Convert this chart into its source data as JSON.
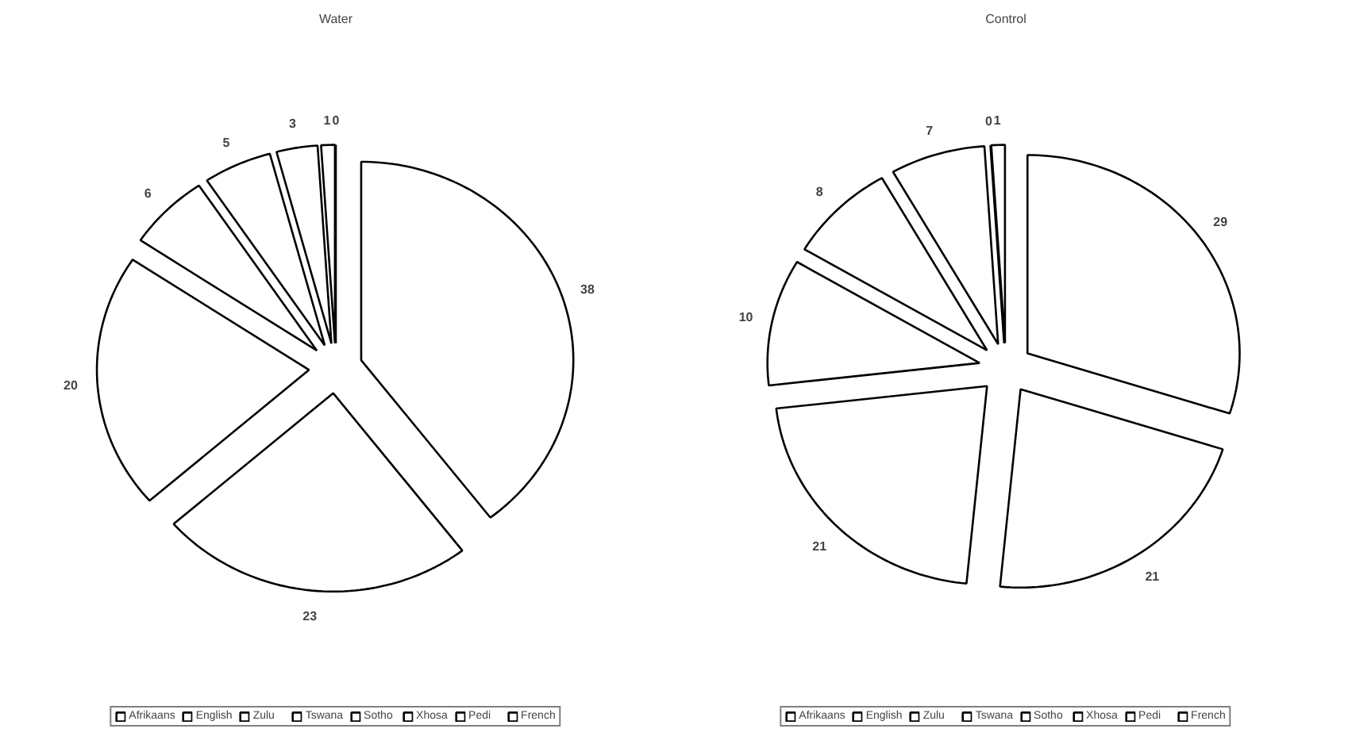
{
  "chart_data": [
    {
      "type": "pie",
      "title": "Water",
      "categories": [
        "Afrikaans",
        "English",
        "Zulu",
        "Tswana",
        "Sotho",
        "Xhosa",
        "Pedi",
        "French"
      ],
      "values": [
        38,
        23,
        20,
        6,
        5,
        3,
        1,
        0
      ],
      "value_labels": [
        "38",
        "23",
        "20",
        "6",
        "5",
        "3",
        "1",
        "0"
      ],
      "colors": [
        "#ffffff",
        "#ffffff",
        "#ffffff",
        "#ffffff",
        "#ffffff",
        "#ffffff",
        "#ffffff",
        "#ffffff"
      ],
      "legend": "bottom"
    },
    {
      "type": "pie",
      "title": "Control",
      "categories": [
        "Afrikaans",
        "English",
        "Zulu",
        "Tswana",
        "Sotho",
        "Xhosa",
        "Pedi",
        "French"
      ],
      "values": [
        29,
        21,
        21,
        10,
        8,
        7,
        0,
        1
      ],
      "value_labels": [
        "29",
        "21",
        "21",
        "10",
        "8",
        "7",
        "0",
        "1"
      ],
      "colors": [
        "#ffffff",
        "#ffffff",
        "#ffffff",
        "#ffffff",
        "#ffffff",
        "#ffffff",
        "#ffffff",
        "#ffffff"
      ],
      "legend": "bottom"
    }
  ]
}
